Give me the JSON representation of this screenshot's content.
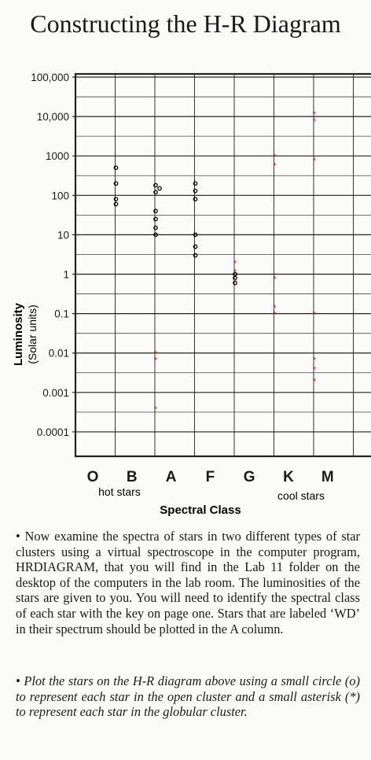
{
  "title": "Constructing the H-R Diagram",
  "chart_data": {
    "type": "scatter",
    "title": "Constructing the H-R Diagram",
    "ylabel": "Luminosity",
    "ylabel_units": "(Solar units)",
    "xlabel": "Spectral Class",
    "y_scale": "log",
    "ylim": [
      0.0001,
      100000
    ],
    "y_ticks": [
      "100,000",
      "10,000",
      "1000",
      "100",
      "10",
      "1",
      "0.1",
      "0.01",
      "0.001",
      "0.0001"
    ],
    "categories": [
      "O",
      "B",
      "A",
      "F",
      "G",
      "K",
      "M"
    ],
    "annotations": {
      "hot": "hot stars",
      "cool": "cool stars"
    },
    "grid": true,
    "series": [
      {
        "name": "",
        "marker": "circle",
        "color": "#000000",
        "points": [
          {
            "x": "B",
            "y": 500
          },
          {
            "x": "B",
            "y": 200
          },
          {
            "x": "B",
            "y": 80
          },
          {
            "x": "B",
            "y": 60
          },
          {
            "x": "A",
            "y": 180
          },
          {
            "x": "A",
            "y": 150
          },
          {
            "x": "A",
            "y": 120
          },
          {
            "x": "A",
            "y": 40
          },
          {
            "x": "A",
            "y": 25
          },
          {
            "x": "A",
            "y": 15
          },
          {
            "x": "A",
            "y": 10
          },
          {
            "x": "F",
            "y": 200
          },
          {
            "x": "F",
            "y": 130
          },
          {
            "x": "F",
            "y": 80
          },
          {
            "x": "F",
            "y": 10
          },
          {
            "x": "F",
            "y": 5
          },
          {
            "x": "F",
            "y": 3
          },
          {
            "x": "G",
            "y": 1
          },
          {
            "x": "G",
            "y": 0.8
          },
          {
            "x": "G",
            "y": 0.6
          }
        ]
      },
      {
        "name": "",
        "marker": "asterisk",
        "color": "#e0201b",
        "points": [
          {
            "x": "A",
            "y": 0.01
          },
          {
            "x": "A",
            "y": 0.007
          },
          {
            "x": "A",
            "y": 0.0004
          },
          {
            "x": "G",
            "y": 2
          },
          {
            "x": "G",
            "y": 1.2
          },
          {
            "x": "G",
            "y": 0.7
          },
          {
            "x": "K",
            "y": 1000
          },
          {
            "x": "K",
            "y": 600
          },
          {
            "x": "K",
            "y": 0.8
          },
          {
            "x": "K",
            "y": 0.15
          },
          {
            "x": "K",
            "y": 0.1
          },
          {
            "x": "M",
            "y": 12000
          },
          {
            "x": "M",
            "y": 8000
          },
          {
            "x": "M",
            "y": 800
          },
          {
            "x": "M",
            "y": 0.1
          },
          {
            "x": "M",
            "y": 0.007
          },
          {
            "x": "M",
            "y": 0.004
          },
          {
            "x": "M",
            "y": 0.002
          }
        ]
      }
    ]
  },
  "paragraph1": "• Now examine the spectra of stars in two different types of star clusters using a virtual spectroscope in the computer program, HRDIAGRAM, that you will find in the Lab 11 folder on the desktop of the computers in the lab room. The luminosities of the stars are given to you. You will need to identify the spectral class of each star with the key on page one. Stars that are labeled ‘WD’ in their spectrum should be plotted in the A column.",
  "paragraph2": "• Plot the stars on the H-R diagram above using a small circle (o) to represent each star in the open cluster and a small asterisk (*) to represent each star in the globular cluster."
}
